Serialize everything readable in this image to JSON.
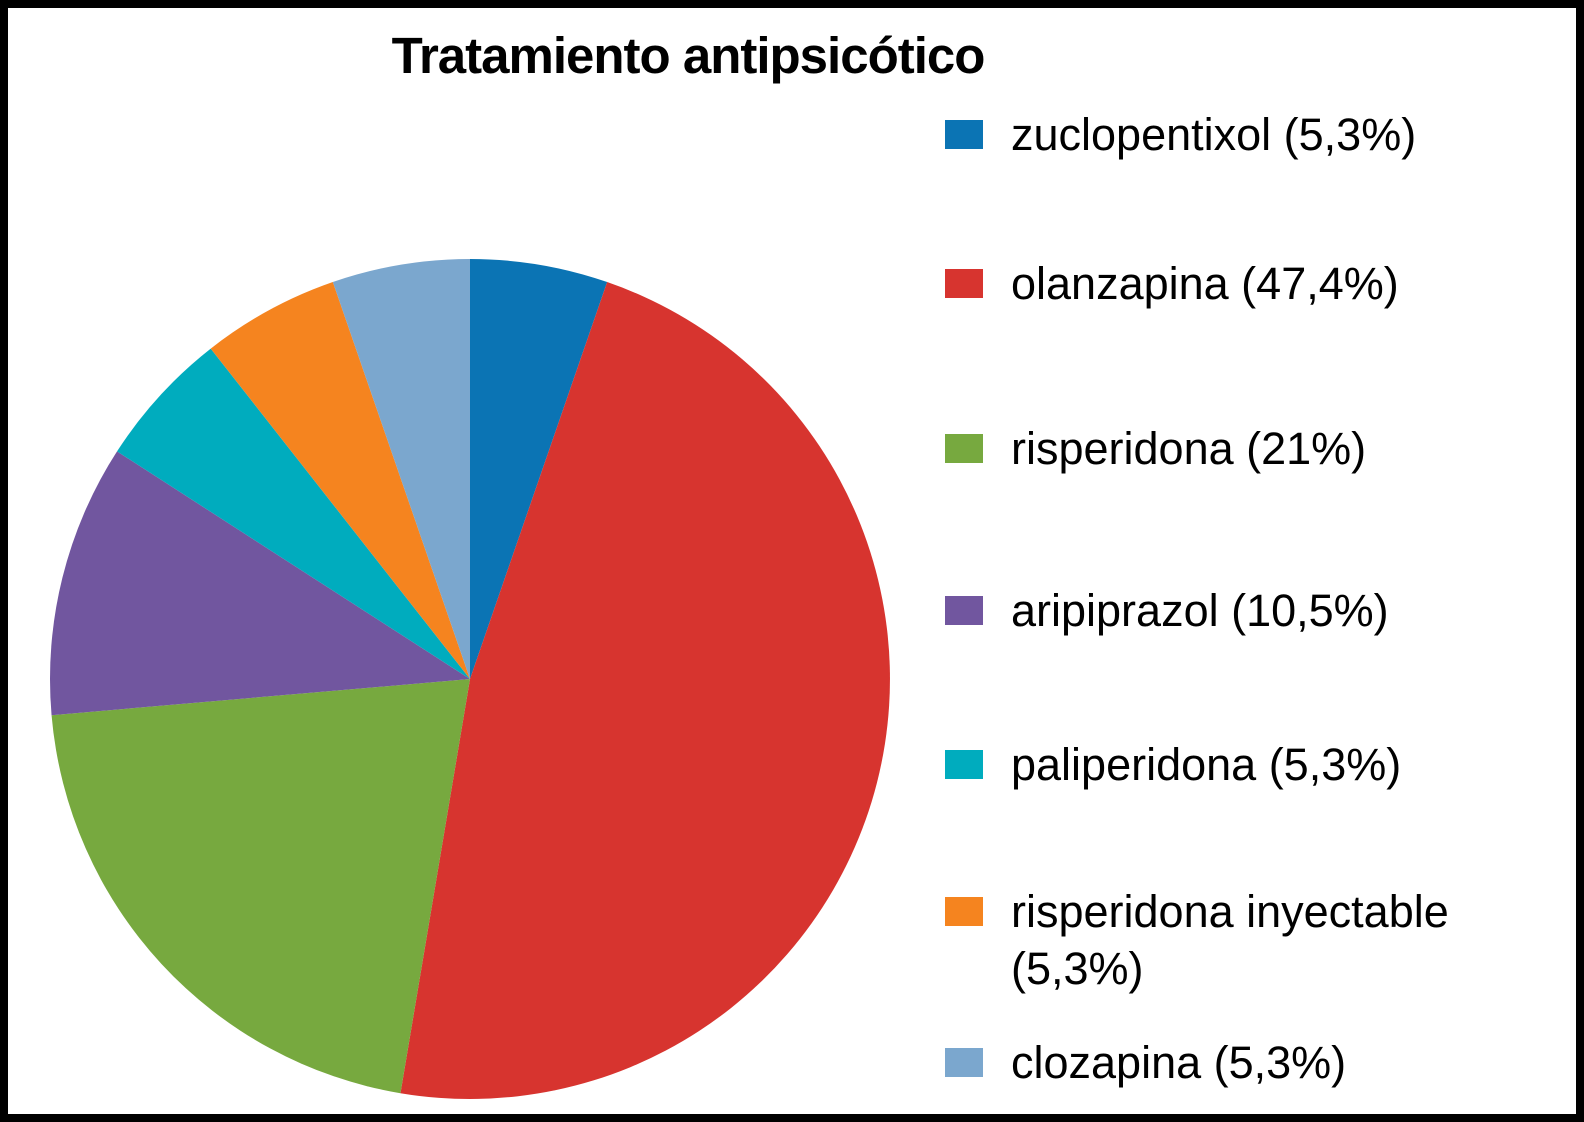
{
  "chart_data": {
    "type": "pie",
    "title": "Tratamiento antipsicótico",
    "legend_position": "right",
    "start_angle": "top",
    "direction": "clockwise",
    "slices": [
      {
        "name": "zuclopentixol",
        "label": "zuclopentixol (5,3%)",
        "value": 5.3,
        "color": "#0b74b4"
      },
      {
        "name": "olanzapina",
        "label": "olanzapina (47,4%)",
        "value": 47.4,
        "color": "#d7342f"
      },
      {
        "name": "risperidona",
        "label": "risperidona (21%)",
        "value": 21,
        "color": "#77a93f"
      },
      {
        "name": "aripiprazol",
        "label": "aripiprazol (10,5%)",
        "value": 10.5,
        "color": "#71569f"
      },
      {
        "name": "paliperidona",
        "label": "paliperidona (5,3%)",
        "value": 5.3,
        "color": "#00acbe"
      },
      {
        "name": "risperidona-inyectable",
        "label": "risperidona inyectable (5,3%)",
        "value": 5.3,
        "color": "#f5841f"
      },
      {
        "name": "clozapina",
        "label": "clozapina (5,3%)",
        "value": 5.3,
        "color": "#7ba7ce"
      }
    ]
  }
}
